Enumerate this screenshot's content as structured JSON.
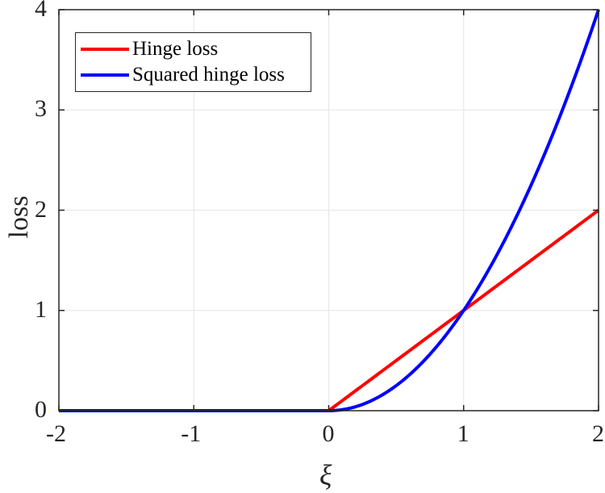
{
  "chart_data": {
    "type": "line",
    "title": "",
    "xlabel": "ξ",
    "ylabel": "loss",
    "xlim": [
      -2,
      2
    ],
    "ylim": [
      0,
      4
    ],
    "grid": true,
    "legend_position": "upper left",
    "xticks": [
      "-2",
      "-1",
      "0",
      "1",
      "2"
    ],
    "yticks": [
      "0",
      "1",
      "2",
      "3",
      "4"
    ],
    "x": [
      -2,
      -1.5,
      -1,
      -0.5,
      0,
      0.25,
      0.5,
      0.75,
      1,
      1.25,
      1.5,
      1.75,
      2
    ],
    "series": [
      {
        "name": "Hinge loss",
        "color": "#ff0000",
        "values": [
          0,
          0,
          0,
          0,
          0,
          0.25,
          0.5,
          0.75,
          1,
          1.25,
          1.5,
          1.75,
          2
        ]
      },
      {
        "name": "Squared hinge loss",
        "color": "#0000ff",
        "values": [
          0,
          0,
          0,
          0,
          0,
          0.0625,
          0.25,
          0.5625,
          1,
          1.5625,
          2.25,
          3.0625,
          4
        ]
      }
    ]
  },
  "legend": {
    "items": [
      {
        "label": "Hinge loss",
        "color": "#ff0000"
      },
      {
        "label": "Squared hinge loss",
        "color": "#0000ff"
      }
    ]
  },
  "axes": {
    "xlabel": "ξ",
    "ylabel": "loss",
    "xticks": [
      "-2",
      "-1",
      "0",
      "1",
      "2"
    ],
    "yticks": [
      "0",
      "1",
      "2",
      "3",
      "4"
    ]
  }
}
